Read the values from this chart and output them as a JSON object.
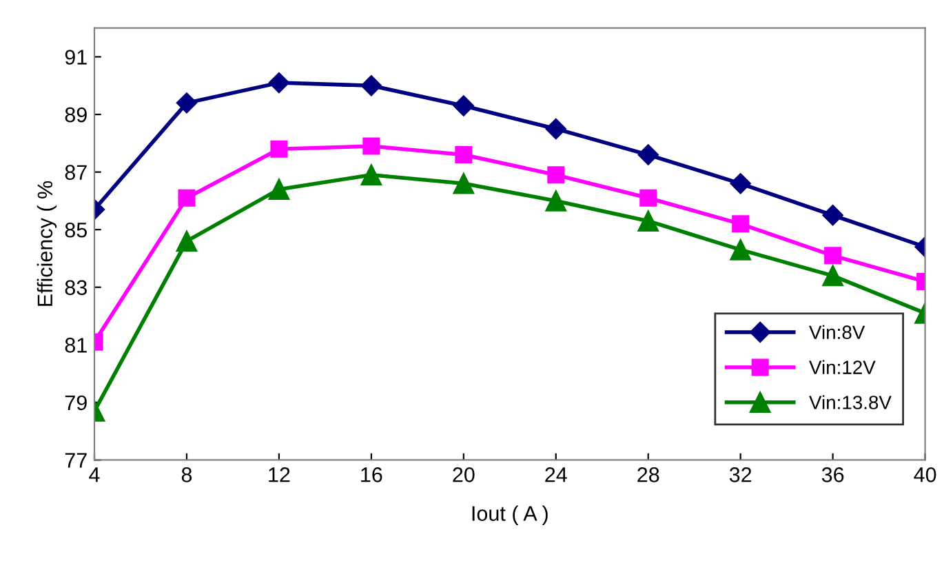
{
  "chart_data": {
    "type": "line",
    "xlabel": "Iout ( A )",
    "ylabel": "Efficiency ( %",
    "x": [
      4,
      8,
      12,
      16,
      20,
      24,
      28,
      32,
      36,
      40
    ],
    "xlim": [
      4,
      40
    ],
    "xticks": [
      4,
      8,
      12,
      16,
      20,
      24,
      28,
      32,
      36,
      40
    ],
    "ylim": [
      77,
      92
    ],
    "yticks": [
      77,
      79,
      81,
      83,
      85,
      87,
      89,
      91
    ],
    "grid": false,
    "legend": "bottom right",
    "line_style": "solid",
    "series": [
      {
        "name": "Vin:8V",
        "color": "#000080",
        "marker": "diamond",
        "values": [
          85.7,
          89.4,
          90.1,
          90.0,
          89.3,
          88.5,
          87.6,
          86.6,
          85.5,
          84.4
        ]
      },
      {
        "name": "Vin:12V",
        "color": "#ff00ff",
        "marker": "square",
        "values": [
          81.1,
          86.1,
          87.8,
          87.9,
          87.6,
          86.9,
          86.1,
          85.2,
          84.1,
          83.2
        ]
      },
      {
        "name": "Vin:13.8V",
        "color": "#008000",
        "marker": "triangle",
        "values": [
          78.7,
          84.6,
          86.4,
          86.9,
          86.6,
          86.0,
          85.3,
          84.3,
          83.4,
          82.1
        ]
      }
    ]
  }
}
